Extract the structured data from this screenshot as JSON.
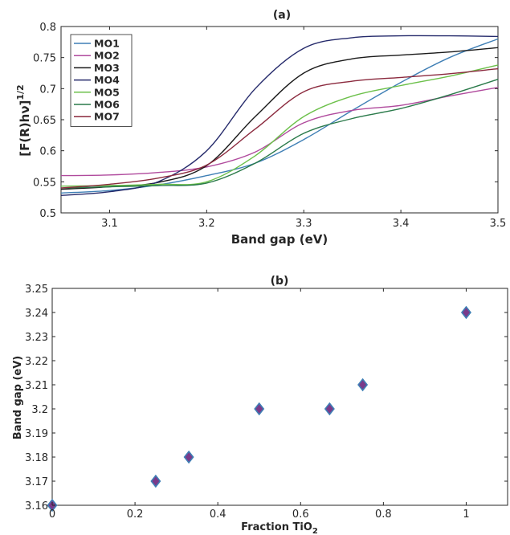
{
  "chart_data": [
    {
      "type": "line",
      "title": "(a)",
      "xlabel": "Band gap (eV)",
      "ylabel": "[F(R)hν]",
      "ylabel_superscript": "1/2",
      "xlim": [
        3.05,
        3.5
      ],
      "ylim": [
        0.5,
        0.8
      ],
      "xticks": [
        "3.1",
        "3.2",
        "3.3",
        "3.4",
        "3.5"
      ],
      "yticks": [
        "0.5",
        "0.55",
        "0.6",
        "0.65",
        "0.7",
        "0.75",
        "0.8"
      ],
      "legend": "top-left",
      "grid": false,
      "series": [
        {
          "name": "MO1",
          "color": "#3f7fb5",
          "x": [
            3.05,
            3.1,
            3.15,
            3.2,
            3.25,
            3.3,
            3.35,
            3.4,
            3.45,
            3.5
          ],
          "y": [
            0.532,
            0.536,
            0.545,
            0.56,
            0.58,
            0.618,
            0.665,
            0.71,
            0.75,
            0.78
          ]
        },
        {
          "name": "MO2",
          "color": "#b04a9d",
          "x": [
            3.05,
            3.1,
            3.15,
            3.2,
            3.25,
            3.3,
            3.35,
            3.4,
            3.45,
            3.5
          ],
          "y": [
            0.56,
            0.561,
            0.565,
            0.574,
            0.598,
            0.645,
            0.665,
            0.673,
            0.688,
            0.702
          ]
        },
        {
          "name": "MO3",
          "color": "#1a1a1a",
          "x": [
            3.05,
            3.1,
            3.15,
            3.2,
            3.25,
            3.3,
            3.35,
            3.4,
            3.45,
            3.5
          ],
          "y": [
            0.538,
            0.542,
            0.549,
            0.576,
            0.655,
            0.725,
            0.748,
            0.754,
            0.759,
            0.766
          ]
        },
        {
          "name": "MO4",
          "color": "#252a6b",
          "x": [
            3.05,
            3.1,
            3.15,
            3.2,
            3.25,
            3.3,
            3.35,
            3.4,
            3.45,
            3.5
          ],
          "y": [
            0.528,
            0.534,
            0.55,
            0.6,
            0.7,
            0.765,
            0.782,
            0.785,
            0.785,
            0.784
          ]
        },
        {
          "name": "MO5",
          "color": "#6cc04a",
          "x": [
            3.05,
            3.1,
            3.15,
            3.2,
            3.25,
            3.3,
            3.35,
            3.4,
            3.45,
            3.5
          ],
          "y": [
            0.543,
            0.544,
            0.546,
            0.55,
            0.592,
            0.655,
            0.688,
            0.705,
            0.72,
            0.738
          ]
        },
        {
          "name": "MO6",
          "color": "#2a7a4a",
          "x": [
            3.05,
            3.1,
            3.15,
            3.2,
            3.25,
            3.3,
            3.35,
            3.4,
            3.45,
            3.5
          ],
          "y": [
            0.54,
            0.542,
            0.544,
            0.548,
            0.58,
            0.628,
            0.652,
            0.668,
            0.69,
            0.715
          ]
        },
        {
          "name": "MO7",
          "color": "#8b2a3e",
          "x": [
            3.05,
            3.1,
            3.15,
            3.2,
            3.25,
            3.3,
            3.35,
            3.4,
            3.45,
            3.5
          ],
          "y": [
            0.54,
            0.546,
            0.556,
            0.577,
            0.635,
            0.695,
            0.712,
            0.718,
            0.724,
            0.732
          ]
        }
      ]
    },
    {
      "type": "scatter",
      "title": "(b)",
      "xlabel": "Fraction TiO",
      "xlabel_subscript": "2",
      "ylabel": "Band gap (eV)",
      "xlim": [
        0,
        1.1
      ],
      "ylim": [
        3.16,
        3.25
      ],
      "xticks": [
        "0",
        "0.2",
        "0.4",
        "0.6",
        "0.8",
        "1"
      ],
      "yticks": [
        "3.16",
        "3.17",
        "3.18",
        "3.19",
        "3.2",
        "3.21",
        "3.22",
        "3.23",
        "3.24",
        "3.25"
      ],
      "grid": false,
      "marker": "diamond",
      "marker_fill": "#7a3a8a",
      "marker_edge": "#3f7fb5",
      "x": [
        0,
        0.25,
        0.33,
        0.5,
        0.67,
        0.75,
        1.0
      ],
      "y": [
        3.16,
        3.17,
        3.18,
        3.2,
        3.2,
        3.21,
        3.24
      ]
    }
  ]
}
